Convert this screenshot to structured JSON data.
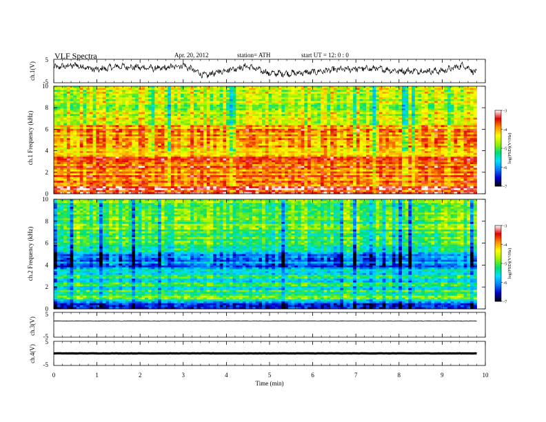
{
  "header": {
    "title": "VLF  Spectra",
    "date": "Apr. 20, 2012",
    "station": "station= ATH",
    "start": "start  UT  =    12: 0  : 0"
  },
  "chart_data": [
    {
      "type": "line",
      "panel": "ch1-waveform",
      "ylabel": "ch.1(V)",
      "ylim": [
        -5,
        5
      ],
      "yticks": [
        "5",
        "-5"
      ],
      "xlim": [
        0,
        10
      ],
      "data_end_min": 9.8,
      "approx_shape": {
        "x_min": [
          0,
          0.5,
          1.0,
          1.5,
          2.0,
          2.5,
          3.0,
          3.5,
          4.0,
          4.5,
          5.0,
          5.5,
          6.0,
          6.5,
          7.0,
          7.5,
          8.0,
          8.5,
          9.0,
          9.5,
          9.8
        ],
        "y_V": [
          1.5,
          2.5,
          0.5,
          2.0,
          1.5,
          1.0,
          2.5,
          -2.0,
          0.5,
          2.0,
          -1.0,
          -1.0,
          -0.5,
          0.5,
          1.0,
          1.0,
          0.0,
          0.0,
          0.0,
          2.5,
          -1.0
        ]
      }
    },
    {
      "type": "heatmap",
      "panel": "ch1-spectrogram",
      "ylabel": "ch.1 Frequency  (kHz)",
      "ylim": [
        0,
        10
      ],
      "yticks": [
        "0",
        "2",
        "4",
        "6",
        "8",
        "10"
      ],
      "xlim": [
        0,
        10
      ],
      "data_end_min": 9.8,
      "colorbar": {
        "label": "log(PSD)(V²/Hz)",
        "range": [
          -7,
          -3
        ],
        "ticks": [
          "-3",
          "-4",
          "-5",
          "-6",
          "-7"
        ]
      },
      "approx_level_by_freq_khz": {
        "0.5": -3.4,
        "1": -3.8,
        "2": -3.8,
        "3": -3.6,
        "4": -4.0,
        "5": -3.9,
        "6": -4.0,
        "7": -4.5,
        "8": -4.6,
        "9": -4.6,
        "10": -4.6
      }
    },
    {
      "type": "heatmap",
      "panel": "ch2-spectrogram",
      "ylabel": "ch.2 Frequency  (kHz)",
      "ylim": [
        0,
        10
      ],
      "yticks": [
        "0",
        "2",
        "4",
        "6",
        "8",
        "10"
      ],
      "xlim": [
        0,
        10
      ],
      "data_end_min": 9.8,
      "colorbar": {
        "label": "log(PSD)(V²/Hz)",
        "range": [
          -7,
          -3
        ],
        "ticks": [
          "-3",
          "-4",
          "-5",
          "-6",
          "-7"
        ]
      },
      "approx_level_by_freq_khz": {
        "0.5": -6.5,
        "1": -5.0,
        "2": -5.4,
        "3": -5.4,
        "4": -6.1,
        "5": -5.8,
        "6": -5.3,
        "7": -5.0,
        "8": -4.9,
        "9": -4.9,
        "10": -4.9
      }
    },
    {
      "type": "line",
      "panel": "ch3-waveform",
      "ylabel": "ch.3(V)",
      "ylim": [
        -5,
        5
      ],
      "yticks": [
        "5",
        "-5"
      ],
      "xlim": [
        0,
        10
      ],
      "data_end_min": 9.8,
      "level_V": 1.5
    },
    {
      "type": "line",
      "panel": "ch4-waveform",
      "ylabel": "ch.4(V)",
      "ylim": [
        -5,
        5
      ],
      "yticks": [
        "5",
        "-5"
      ],
      "xlim": [
        0,
        10
      ],
      "data_end_min": 9.8,
      "level_V": 0.0
    }
  ],
  "xaxis": {
    "label": "Time  (min)",
    "ticks": [
      "0",
      "1",
      "2",
      "3",
      "4",
      "5",
      "6",
      "7",
      "8",
      "9",
      "10"
    ]
  },
  "colors": {
    "scale": [
      "#000000",
      "#0000cc",
      "#0080ff",
      "#00e0ff",
      "#00e070",
      "#9bf000",
      "#ffff00",
      "#ff9000",
      "#e00000",
      "#ffffff"
    ]
  }
}
